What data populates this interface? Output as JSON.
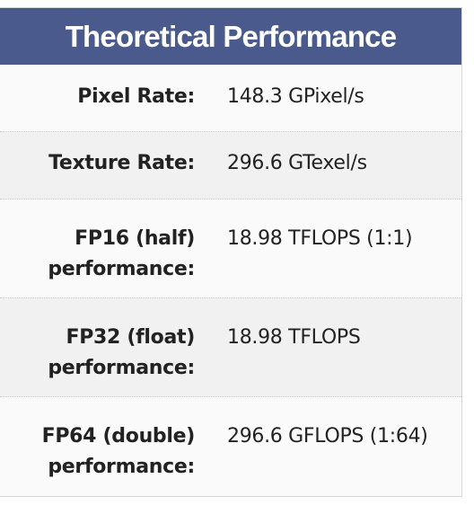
{
  "title": "Theoretical Performance",
  "rows": [
    {
      "label": "Pixel Rate:",
      "value": "148.3 GPixel/s"
    },
    {
      "label": "Texture Rate:",
      "value": "296.6 GTexel/s"
    },
    {
      "label": "FP16 (half)\nperformance:",
      "value": "18.98 TFLOPS (1:1)"
    },
    {
      "label": "FP32 (float)\nperformance:",
      "value": "18.98 TFLOPS"
    },
    {
      "label": "FP64 (double)\nperformance:",
      "value": "296.6 GFLOPS (1:64)"
    }
  ],
  "colors": {
    "header_bg": "#4a5a8c",
    "header_text": "#ffffff",
    "row_bg": "#fafafa",
    "row_alt_bg": "#f1f1f1"
  }
}
